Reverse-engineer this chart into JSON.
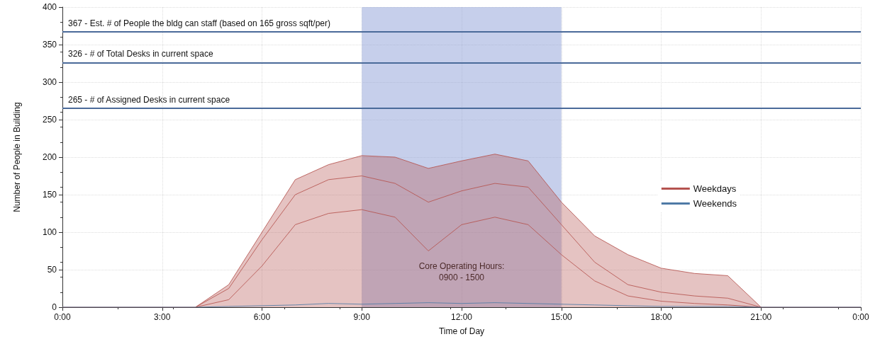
{
  "chart_data": {
    "type": "line",
    "xlabel": "Time of Day",
    "ylabel": "Number of People in Building",
    "xlim": [
      0,
      24
    ],
    "xticks": [
      {
        "value": 0,
        "label": "0:00"
      },
      {
        "value": 3,
        "label": "3:00"
      },
      {
        "value": 6,
        "label": "6:00"
      },
      {
        "value": 9,
        "label": "9:00"
      },
      {
        "value": 12,
        "label": "12:00"
      },
      {
        "value": 15,
        "label": "15:00"
      },
      {
        "value": 18,
        "label": "18:00"
      },
      {
        "value": 21,
        "label": "21:00"
      },
      {
        "value": 24,
        "label": "0:00"
      }
    ],
    "ylim": [
      0,
      400
    ],
    "yticks": [
      0,
      50,
      100,
      150,
      200,
      250,
      300,
      350,
      400
    ],
    "series": [
      {
        "name": "Weekdays",
        "type": "area",
        "color": "#b5534f",
        "x": [
          0,
          1,
          2,
          3,
          4,
          5,
          6,
          7,
          8,
          9,
          10,
          11,
          12,
          13,
          14,
          15,
          16,
          17,
          18,
          19,
          20,
          21,
          22,
          23,
          24
        ],
        "values": [
          0,
          0,
          0,
          0,
          0,
          30,
          100,
          170,
          190,
          202,
          200,
          185,
          195,
          204,
          195,
          140,
          95,
          70,
          52,
          45,
          42,
          0,
          0,
          0,
          0
        ]
      },
      {
        "color": "#b5534f",
        "x": [
          4,
          5,
          6,
          7,
          8,
          9,
          10,
          11,
          12,
          13,
          14,
          15,
          16,
          17,
          18,
          19,
          20,
          21
        ],
        "values": [
          0,
          25,
          90,
          150,
          170,
          175,
          165,
          140,
          155,
          165,
          160,
          110,
          60,
          30,
          20,
          15,
          12,
          0
        ]
      },
      {
        "color": "#b5534f",
        "x": [
          4,
          5,
          6,
          7,
          8,
          9,
          10,
          11,
          12,
          13,
          14,
          15,
          16,
          17,
          18,
          19,
          20,
          21
        ],
        "values": [
          0,
          10,
          55,
          110,
          125,
          130,
          120,
          75,
          110,
          120,
          110,
          70,
          35,
          15,
          8,
          5,
          3,
          0
        ]
      },
      {
        "name": "Weekends",
        "color": "#4f7aa6",
        "x": [
          0,
          1,
          2,
          3,
          4,
          5,
          6,
          7,
          8,
          9,
          10,
          11,
          12,
          13,
          14,
          15,
          16,
          17,
          18,
          19,
          20,
          21,
          22,
          23,
          24
        ],
        "values": [
          0,
          0,
          0,
          0,
          0,
          1,
          2,
          3,
          5,
          4,
          5,
          6,
          5,
          6,
          5,
          4,
          3,
          2,
          1,
          1,
          1,
          0,
          0,
          0,
          0
        ]
      }
    ],
    "ref_lines": [
      {
        "axis": "y",
        "value": 367,
        "label": "367 - Est. # of People the bldg can staff (based on 165 gross sqft/per)",
        "color": "#4a6a99"
      },
      {
        "axis": "y",
        "value": 326,
        "label": "326 - # of Total Desks in current space",
        "color": "#4a6a99"
      },
      {
        "axis": "y",
        "value": 265,
        "label": "265 - # of Assigned Desks in current space",
        "color": "#4a6a99"
      }
    ],
    "bands": [
      {
        "axis": "x",
        "from": 9,
        "to": 15,
        "label": "Core Operating Hours:\n0900 - 1500",
        "color": "#8e9fd8"
      }
    ],
    "grid": true,
    "legend": "right",
    "marker": "none",
    "line_style": "solid"
  }
}
